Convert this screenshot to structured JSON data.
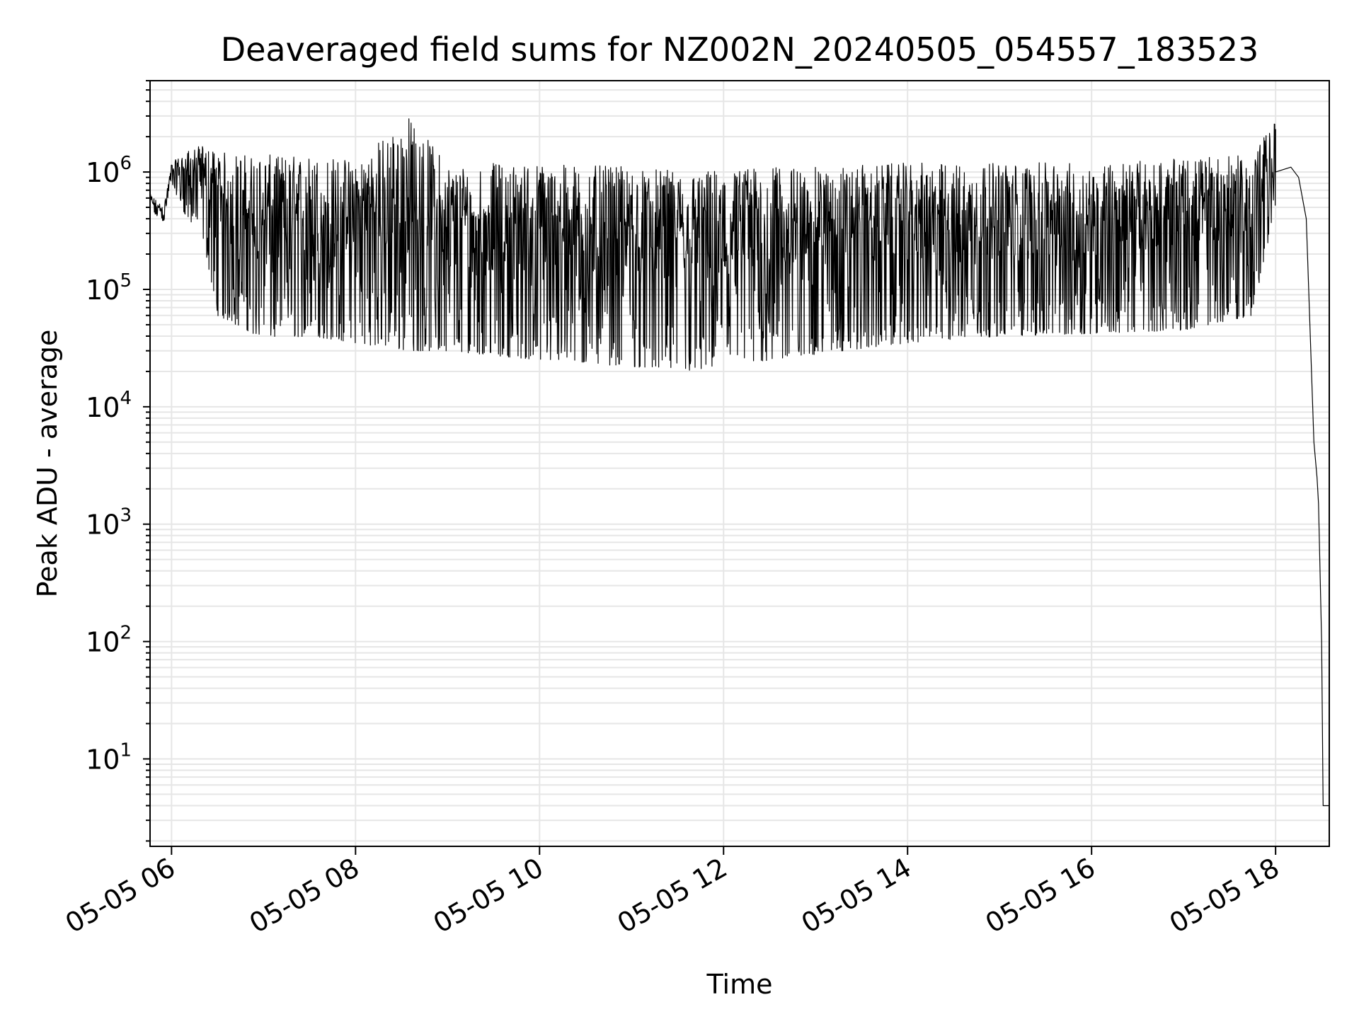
{
  "chart_data": {
    "type": "line",
    "title": "Deaveraged field sums for NZ002N_20240505_054557_183523",
    "xlabel": "Time",
    "ylabel": "Peak ADU - average",
    "yscale": "log",
    "grid": true,
    "line_color": "#000000",
    "grid_color": "#e6e6e6",
    "xlim": [
      "2024-05-05 05:46",
      "2024-05-05 18:35"
    ],
    "ylim": [
      1.8,
      6000000
    ],
    "x_ticks": [
      {
        "label": "05-05 06",
        "value": "2024-05-05 06:00"
      },
      {
        "label": "05-05 08",
        "value": "2024-05-05 08:00"
      },
      {
        "label": "05-05 10",
        "value": "2024-05-05 10:00"
      },
      {
        "label": "05-05 12",
        "value": "2024-05-05 12:00"
      },
      {
        "label": "05-05 14",
        "value": "2024-05-05 14:00"
      },
      {
        "label": "05-05 16",
        "value": "2024-05-05 16:00"
      },
      {
        "label": "05-05 18",
        "value": "2024-05-05 18:00"
      }
    ],
    "y_ticks": [
      {
        "base": "10",
        "exp": "1",
        "value": 10
      },
      {
        "base": "10",
        "exp": "2",
        "value": 100
      },
      {
        "base": "10",
        "exp": "3",
        "value": 1000
      },
      {
        "base": "10",
        "exp": "4",
        "value": 10000
      },
      {
        "base": "10",
        "exp": "5",
        "value": 100000
      },
      {
        "base": "10",
        "exp": "6",
        "value": 1000000
      }
    ],
    "series": [
      {
        "envelope": {
          "description_keys": [
            "t",
            "high",
            "low"
          ],
          "points": [
            [
              "2024-05-05 05:46",
              650000,
              450000
            ],
            [
              "2024-05-05 05:55",
              500000,
              380000
            ],
            [
              "2024-05-05 06:00",
              1200000,
              800000
            ],
            [
              "2024-05-05 06:10",
              1500000,
              400000
            ],
            [
              "2024-05-05 06:20",
              1700000,
              300000
            ],
            [
              "2024-05-05 06:30",
              1500000,
              60000
            ],
            [
              "2024-05-05 07:00",
              1400000,
              38000
            ],
            [
              "2024-05-05 07:30",
              1400000,
              40000
            ],
            [
              "2024-05-05 08:00",
              1300000,
              35000
            ],
            [
              "2024-05-05 08:35",
              3000000,
              30000
            ],
            [
              "2024-05-05 09:00",
              1200000,
              30000
            ],
            [
              "2024-05-05 10:00",
              1200000,
              25000
            ],
            [
              "2024-05-05 11:00",
              1100000,
              22000
            ],
            [
              "2024-05-05 11:40",
              1000000,
              20000
            ],
            [
              "2024-05-05 12:00",
              1100000,
              22000
            ],
            [
              "2024-05-05 13:00",
              1100000,
              28000
            ],
            [
              "2024-05-05 14:00",
              1200000,
              35000
            ],
            [
              "2024-05-05 15:00",
              1200000,
              40000
            ],
            [
              "2024-05-05 16:00",
              1200000,
              42000
            ],
            [
              "2024-05-05 17:00",
              1300000,
              45000
            ],
            [
              "2024-05-05 17:45",
              1400000,
              60000
            ],
            [
              "2024-05-05 18:00",
              2800000,
              500000
            ]
          ]
        },
        "tail": [
          [
            "2024-05-05 18:00",
            1000000
          ],
          [
            "2024-05-05 18:10",
            1100000
          ],
          [
            "2024-05-05 18:15",
            900000
          ],
          [
            "2024-05-05 18:20",
            400000
          ],
          [
            "2024-05-05 18:25",
            5000
          ],
          [
            "2024-05-05 18:27",
            2500
          ],
          [
            "2024-05-05 18:28",
            1500
          ],
          [
            "2024-05-05 18:30",
            100
          ],
          [
            "2024-05-05 18:31",
            4
          ],
          [
            "2024-05-05 18:35",
            4
          ]
        ]
      }
    ]
  }
}
